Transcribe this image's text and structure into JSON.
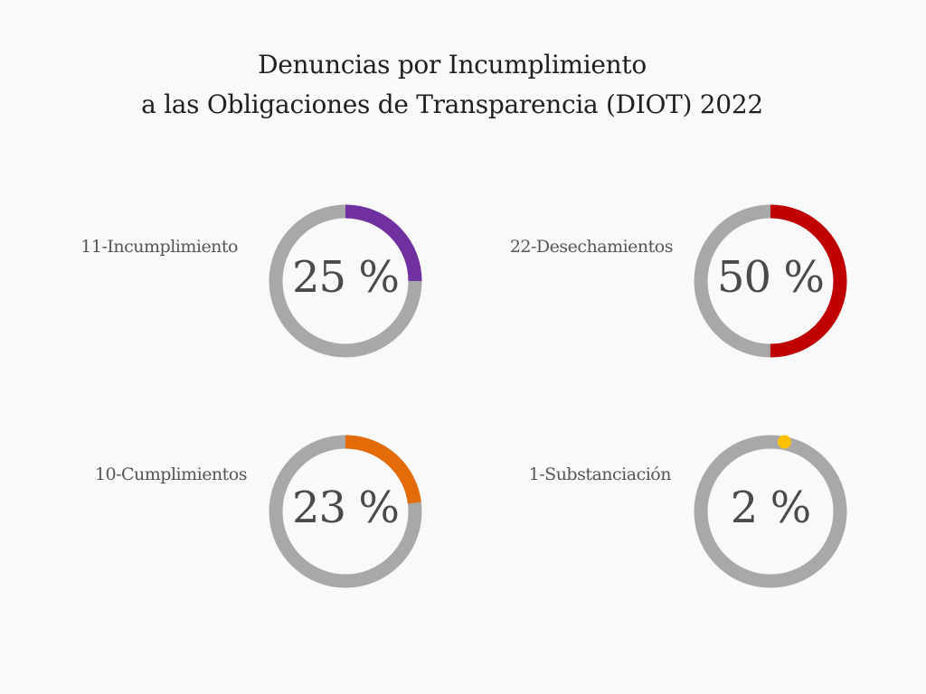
{
  "header": {
    "title_line1": "Denuncias por Incumplimiento",
    "title_line2": "a las Obligaciones de Transparencia  (DIOT) 2022"
  },
  "chart_data": {
    "type": "donut",
    "title": "Denuncias por Incumplimiento a las Obligaciones de Transparencia (DIOT) 2022",
    "track_color": "#a8a8a8",
    "items": [
      {
        "label": "11-Incumplimiento",
        "value": 25,
        "value_text": "25 %",
        "color": "#7030a0"
      },
      {
        "label": "22-Desechamientos",
        "value": 50,
        "value_text": "50 %",
        "color": "#c00000"
      },
      {
        "label": "10-Cumplimientos",
        "value": 23,
        "value_text": "23 %",
        "color": "#e36c09"
      },
      {
        "label": "1-Substanciación",
        "value": 2,
        "value_text": "2 %",
        "color": "#ffc000"
      }
    ]
  }
}
